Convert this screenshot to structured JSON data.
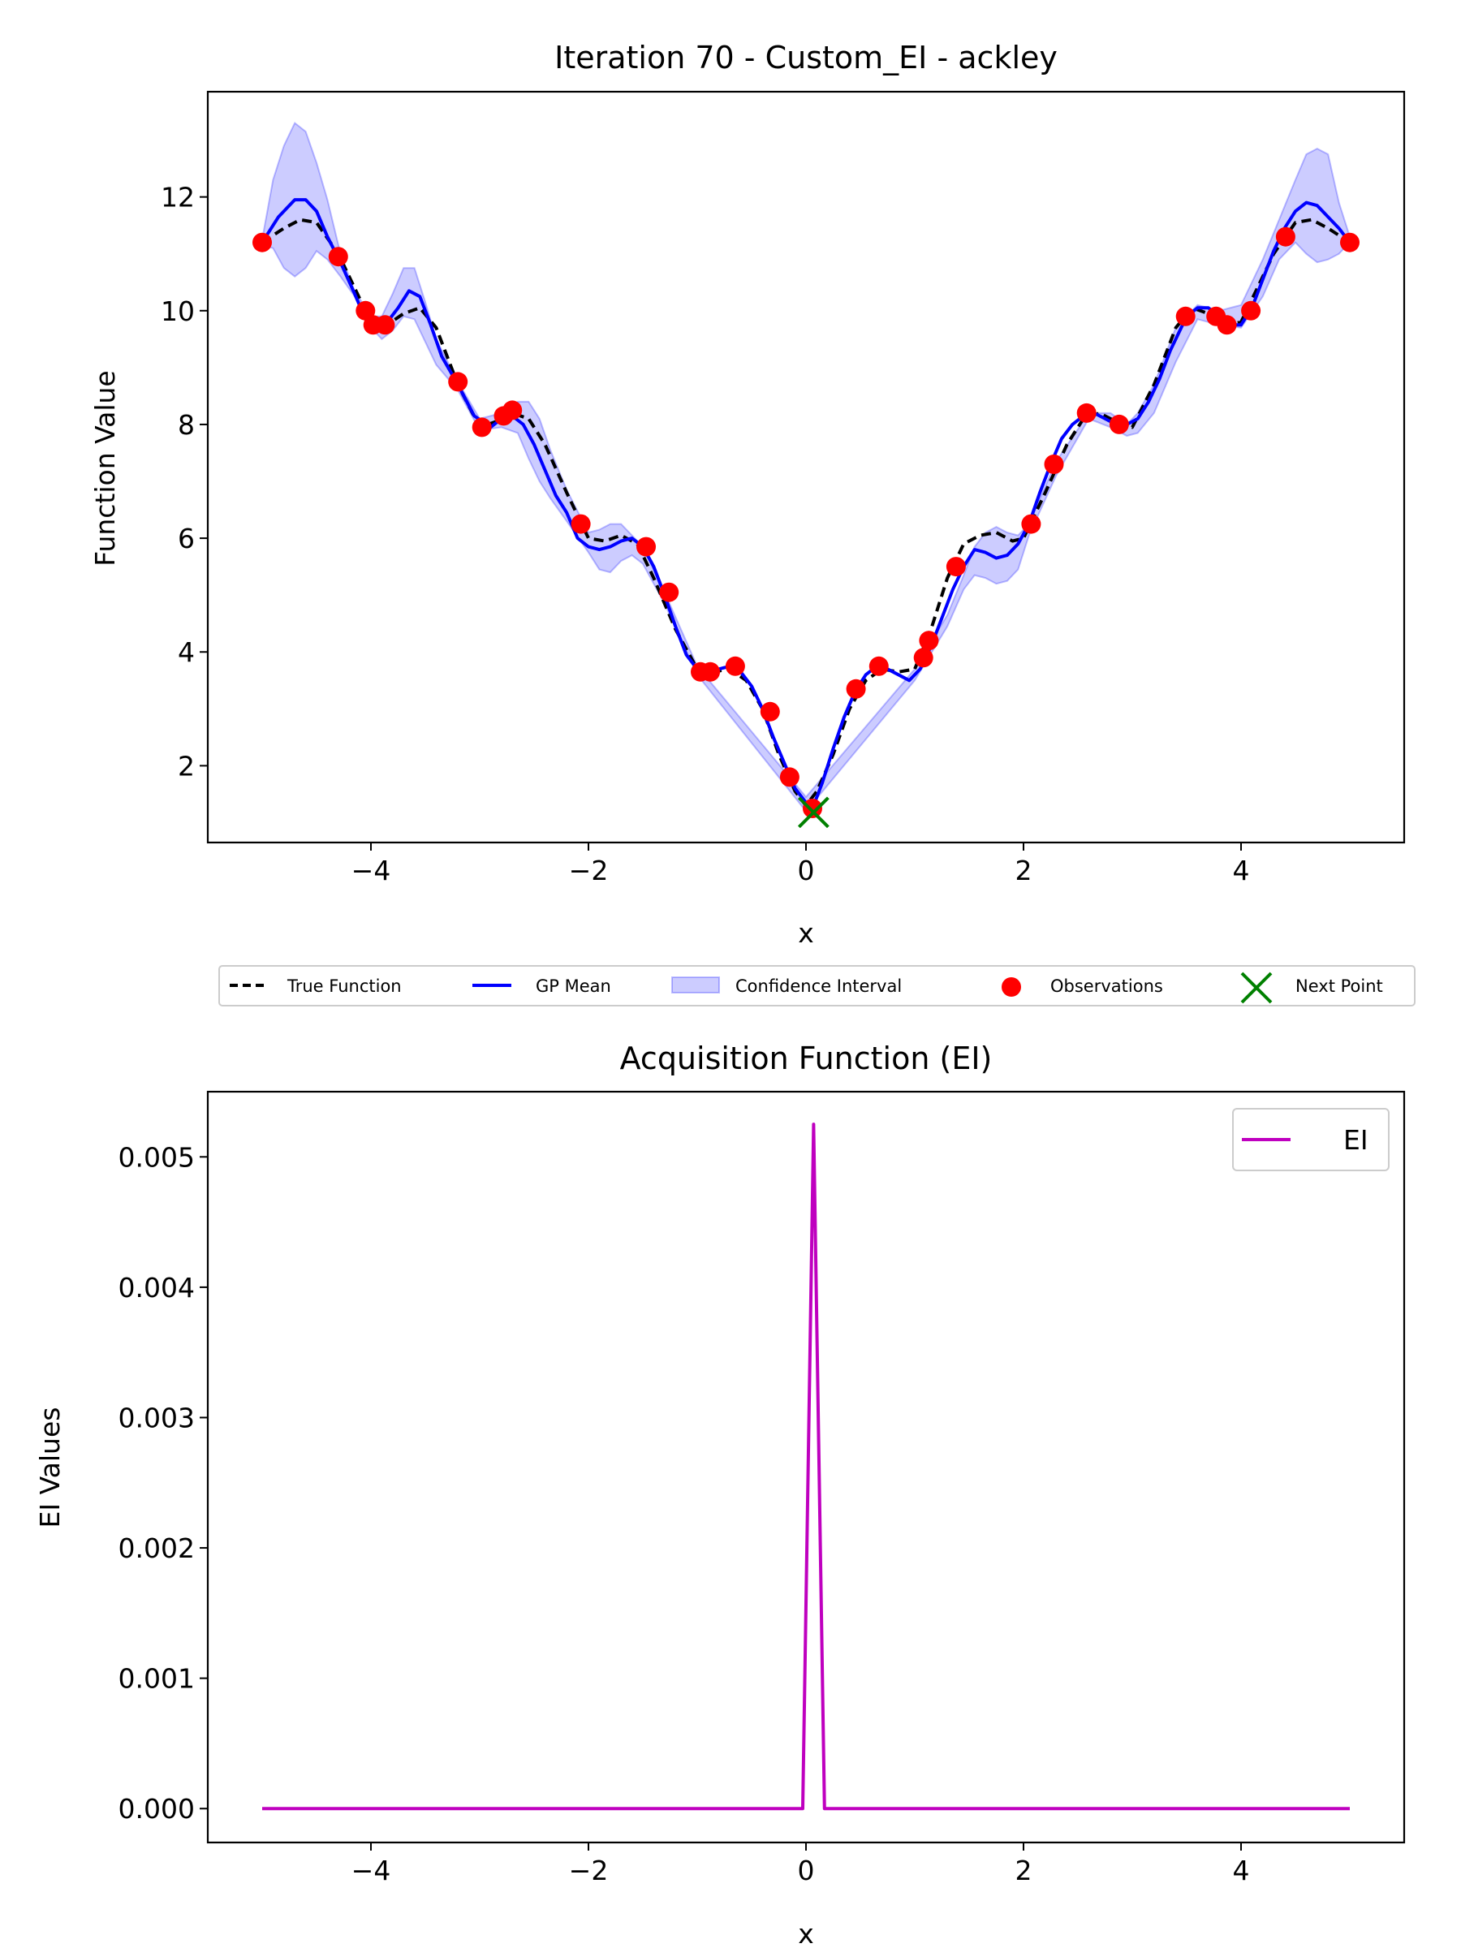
{
  "chart_data": [
    {
      "type": "line",
      "title": "Iteration 70 - Custom_EI - ackley",
      "xlabel": "x",
      "ylabel": "Function Value",
      "xlim": [
        -5.5,
        5.5
      ],
      "ylim": [
        0.65,
        13.85
      ],
      "xticks": [
        -4,
        -2,
        0,
        2,
        4
      ],
      "xtick_labels": [
        "−4",
        "−2",
        "0",
        "2",
        "4"
      ],
      "yticks": [
        2,
        4,
        6,
        8,
        10,
        12
      ],
      "ytick_labels": [
        "2",
        "4",
        "6",
        "8",
        "10",
        "12"
      ],
      "grid": false,
      "legend_position": "below",
      "colors": {
        "true_function": "#000000",
        "gp_mean": "#0000ff",
        "confidence": "#0000ff",
        "observations": "#ff0000",
        "next_point": "#008000"
      },
      "legend": {
        "true_function": "True Function",
        "gp_mean": "GP Mean",
        "confidence": "Confidence Interval",
        "observations": "Observations",
        "next_point": "Next Point"
      },
      "series": [
        {
          "name": "True Function",
          "x": [
            -5.0,
            -4.8,
            -4.65,
            -4.5,
            -4.3,
            -4.15,
            -4.0,
            -3.85,
            -3.7,
            -3.55,
            -3.4,
            -3.2,
            -3.0,
            -2.85,
            -2.7,
            -2.55,
            -2.4,
            -2.2,
            -2.0,
            -1.85,
            -1.7,
            -1.55,
            -1.4,
            -1.2,
            -1.0,
            -0.85,
            -0.7,
            -0.55,
            -0.4,
            -0.25,
            -0.1,
            0.0,
            0.1,
            0.25,
            0.4,
            0.55,
            0.7,
            0.85,
            1.0,
            1.15,
            1.3,
            1.45,
            1.6,
            1.75,
            1.9,
            2.0,
            2.2,
            2.4,
            2.55,
            2.7,
            2.85,
            3.0,
            3.2,
            3.4,
            3.55,
            3.7,
            3.85,
            4.0,
            4.15,
            4.3,
            4.5,
            4.65,
            4.8,
            5.0
          ],
          "y": [
            11.2,
            11.45,
            11.6,
            11.55,
            11.0,
            10.4,
            9.8,
            9.75,
            9.95,
            10.05,
            9.7,
            8.7,
            7.95,
            8.05,
            8.2,
            8.1,
            7.65,
            6.8,
            6.0,
            5.95,
            6.05,
            5.9,
            5.3,
            4.4,
            3.7,
            3.65,
            3.7,
            3.5,
            3.0,
            2.2,
            1.55,
            1.3,
            1.55,
            2.2,
            3.0,
            3.5,
            3.7,
            3.65,
            3.7,
            4.4,
            5.3,
            5.9,
            6.05,
            6.1,
            5.95,
            6.0,
            6.8,
            7.65,
            8.1,
            8.2,
            8.05,
            7.95,
            8.7,
            9.7,
            10.05,
            9.95,
            9.75,
            9.8,
            10.4,
            11.0,
            11.55,
            11.6,
            11.45,
            11.2
          ]
        },
        {
          "name": "GP Mean",
          "x": [
            -5.0,
            -4.85,
            -4.7,
            -4.6,
            -4.5,
            -4.4,
            -4.28,
            -4.15,
            -4.05,
            -3.95,
            -3.85,
            -3.75,
            -3.65,
            -3.55,
            -3.45,
            -3.35,
            -3.2,
            -3.05,
            -2.9,
            -2.8,
            -2.7,
            -2.6,
            -2.5,
            -2.4,
            -2.3,
            -2.2,
            -2.1,
            -2.0,
            -1.9,
            -1.8,
            -1.7,
            -1.6,
            -1.5,
            -1.4,
            -1.3,
            -1.2,
            -1.1,
            -1.0,
            -0.9,
            -0.8,
            -0.7,
            -0.6,
            -0.5,
            -0.4,
            -0.3,
            -0.2,
            -0.1,
            0.0,
            0.07,
            0.15,
            0.25,
            0.35,
            0.45,
            0.55,
            0.65,
            0.75,
            0.85,
            0.95,
            1.05,
            1.15,
            1.25,
            1.35,
            1.45,
            1.55,
            1.65,
            1.75,
            1.85,
            1.95,
            2.05,
            2.15,
            2.25,
            2.35,
            2.45,
            2.55,
            2.65,
            2.75,
            2.85,
            2.95,
            3.05,
            3.15,
            3.25,
            3.35,
            3.5,
            3.6,
            3.7,
            3.8,
            3.9,
            4.0,
            4.1,
            4.2,
            4.3,
            4.4,
            4.5,
            4.6,
            4.7,
            4.8,
            4.9,
            5.0
          ],
          "y": [
            11.2,
            11.65,
            11.95,
            11.95,
            11.75,
            11.3,
            10.85,
            10.3,
            9.85,
            9.7,
            9.8,
            10.05,
            10.35,
            10.25,
            9.75,
            9.2,
            8.7,
            8.15,
            7.95,
            8.1,
            8.15,
            8.0,
            7.65,
            7.2,
            6.75,
            6.45,
            6.0,
            5.85,
            5.8,
            5.85,
            5.95,
            6.0,
            5.85,
            5.5,
            5.0,
            4.45,
            3.95,
            3.7,
            3.65,
            3.7,
            3.75,
            3.65,
            3.4,
            3.0,
            2.5,
            2.05,
            1.6,
            1.35,
            1.3,
            1.7,
            2.3,
            2.85,
            3.3,
            3.6,
            3.75,
            3.7,
            3.6,
            3.5,
            3.7,
            4.1,
            4.6,
            5.1,
            5.5,
            5.8,
            5.75,
            5.65,
            5.7,
            5.9,
            6.25,
            6.8,
            7.3,
            7.75,
            8.0,
            8.15,
            8.2,
            8.1,
            8.0,
            8.0,
            8.1,
            8.4,
            8.8,
            9.3,
            9.9,
            10.05,
            10.05,
            9.9,
            9.75,
            9.75,
            10.05,
            10.55,
            11.05,
            11.45,
            11.75,
            11.9,
            11.85,
            11.65,
            11.45,
            11.2
          ]
        },
        {
          "name": "Confidence Interval",
          "x": [
            -5.0,
            -4.9,
            -4.8,
            -4.7,
            -4.6,
            -4.5,
            -4.4,
            -4.28,
            -4.15,
            -4.0,
            -3.9,
            -3.8,
            -3.7,
            -3.6,
            -3.5,
            -3.4,
            -3.2,
            -3.0,
            -2.8,
            -2.65,
            -2.55,
            -2.45,
            -2.35,
            -2.2,
            -2.0,
            -1.9,
            -1.8,
            -1.7,
            -1.6,
            -1.5,
            -1.3,
            -1.0,
            0.0,
            1.0,
            1.3,
            1.45,
            1.55,
            1.65,
            1.75,
            1.85,
            1.95,
            2.05,
            2.3,
            2.6,
            2.8,
            2.95,
            3.05,
            3.2,
            3.4,
            3.6,
            3.8,
            4.0,
            4.2,
            4.35,
            4.5,
            4.6,
            4.7,
            4.8,
            4.9,
            5.0
          ],
          "upper": [
            11.25,
            12.3,
            12.9,
            13.3,
            13.15,
            12.6,
            11.95,
            11.0,
            10.35,
            9.9,
            9.9,
            10.3,
            10.75,
            10.75,
            10.15,
            9.5,
            8.75,
            8.1,
            8.2,
            8.4,
            8.4,
            8.1,
            7.55,
            6.85,
            6.1,
            6.15,
            6.25,
            6.25,
            6.05,
            5.85,
            5.05,
            3.75,
            1.45,
            3.7,
            4.65,
            5.35,
            5.85,
            6.1,
            6.2,
            6.1,
            6.05,
            6.25,
            7.35,
            8.2,
            8.2,
            8.0,
            8.2,
            8.7,
            9.7,
            10.1,
            10.0,
            10.1,
            10.9,
            11.6,
            12.3,
            12.75,
            12.85,
            12.75,
            11.9,
            11.3
          ],
          "lower": [
            11.15,
            11.1,
            10.75,
            10.6,
            10.75,
            11.05,
            10.9,
            10.6,
            10.25,
            9.7,
            9.5,
            9.65,
            9.9,
            9.85,
            9.45,
            9.05,
            8.6,
            7.9,
            7.95,
            7.85,
            7.4,
            7.0,
            6.7,
            6.3,
            5.75,
            5.45,
            5.4,
            5.6,
            5.7,
            5.55,
            4.85,
            3.6,
            1.2,
            3.5,
            4.45,
            5.1,
            5.35,
            5.3,
            5.2,
            5.25,
            5.45,
            6.05,
            7.1,
            8.1,
            7.95,
            7.8,
            7.85,
            8.2,
            9.1,
            9.85,
            9.75,
            9.7,
            10.25,
            10.9,
            11.2,
            11.0,
            10.85,
            10.9,
            11.0,
            11.2
          ]
        },
        {
          "name": "Observations",
          "x": [
            -5.0,
            -4.3,
            -4.05,
            -3.98,
            -3.87,
            -3.2,
            -2.98,
            -2.78,
            -2.7,
            -2.07,
            -1.47,
            -1.26,
            -0.97,
            -0.88,
            -0.65,
            -0.33,
            -0.15,
            0.06,
            0.46,
            0.67,
            1.08,
            1.13,
            1.38,
            2.07,
            2.28,
            2.58,
            2.88,
            3.49,
            3.77,
            3.87,
            4.09,
            4.41,
            5.0
          ],
          "y": [
            11.2,
            10.95,
            10.0,
            9.75,
            9.75,
            8.75,
            7.95,
            8.15,
            8.25,
            6.25,
            5.85,
            5.05,
            3.65,
            3.65,
            3.75,
            2.95,
            1.8,
            1.25,
            3.35,
            3.75,
            3.9,
            4.2,
            5.5,
            6.25,
            7.3,
            8.2,
            8.0,
            9.9,
            9.9,
            9.75,
            10.0,
            11.3,
            11.2
          ]
        },
        {
          "name": "Next Point",
          "x": [
            0.07
          ],
          "y": [
            1.18
          ]
        }
      ]
    },
    {
      "type": "line",
      "title": "Acquisition Function (EI)",
      "xlabel": "x",
      "ylabel": "EI Values",
      "xlim": [
        -5.5,
        5.5
      ],
      "ylim": [
        -0.00026,
        0.0055
      ],
      "xticks": [
        -4,
        -2,
        0,
        2,
        4
      ],
      "xtick_labels": [
        "−4",
        "−2",
        "0",
        "2",
        "4"
      ],
      "yticks": [
        0,
        0.001,
        0.002,
        0.003,
        0.004,
        0.005
      ],
      "ytick_labels": [
        "0.000",
        "0.001",
        "0.002",
        "0.003",
        "0.004",
        "0.005"
      ],
      "grid": false,
      "legend_position": "upper right",
      "colors": {
        "ei": "#bf00bf"
      },
      "series": [
        {
          "name": "EI",
          "x": [
            -5.0,
            -0.03,
            0.07,
            0.17,
            5.0
          ],
          "y": [
            0.0,
            0.0,
            0.00525,
            0.0,
            0.0
          ]
        }
      ]
    }
  ]
}
